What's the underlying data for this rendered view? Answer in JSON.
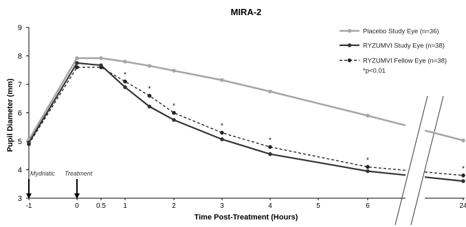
{
  "chart_data": {
    "type": "line",
    "title": "MIRA-2",
    "xlabel": "Time Post-Treatment (Hours)",
    "ylabel": "Pupil Diameter (mm)",
    "ylim": [
      3,
      9
    ],
    "yticks": [
      "3",
      "4",
      "5",
      "6",
      "7",
      "8",
      "9"
    ],
    "x_ticks": [
      "-1",
      "0",
      "0.5",
      "1",
      "2",
      "3",
      "4",
      "5",
      "6",
      "24"
    ],
    "axis_break": "between 6 and 24",
    "grid": false,
    "legend_position": "top-right",
    "series": [
      {
        "name": "Placebo Study Eye (n=36)",
        "color": "#a6a6a6",
        "style": "solid",
        "x": [
          -1,
          0,
          0.5,
          1,
          1.5,
          2,
          3,
          4,
          6,
          24
        ],
        "values": [
          5.05,
          7.92,
          7.92,
          7.8,
          7.65,
          7.48,
          7.15,
          6.75,
          5.9,
          5.03
        ]
      },
      {
        "name": "RYZUMVI Study Eye (n=38)",
        "color": "#333333",
        "style": "solid",
        "x": [
          -1,
          0,
          0.5,
          1,
          1.5,
          2,
          3,
          4,
          6,
          24
        ],
        "values": [
          4.95,
          7.75,
          7.67,
          6.9,
          6.22,
          5.75,
          5.07,
          4.55,
          3.95,
          3.6
        ]
      },
      {
        "name": "RYZUMVI Fellow Eye (n=38)",
        "color": "#222222",
        "style": "dashed",
        "x": [
          -1,
          0,
          0.5,
          1,
          1.5,
          2,
          3,
          4,
          6,
          24
        ],
        "values": [
          4.9,
          7.6,
          7.6,
          7.1,
          6.6,
          6.0,
          5.3,
          4.8,
          4.1,
          3.8
        ]
      }
    ],
    "significance_marker": "*",
    "significance_note": "*p<0.01",
    "significant_x": [
      1,
      1.5,
      2,
      3,
      4,
      6,
      24
    ],
    "annotations": [
      {
        "text": "Mydriatic",
        "x": -1
      },
      {
        "text": "Treatment",
        "x": 0
      }
    ]
  }
}
